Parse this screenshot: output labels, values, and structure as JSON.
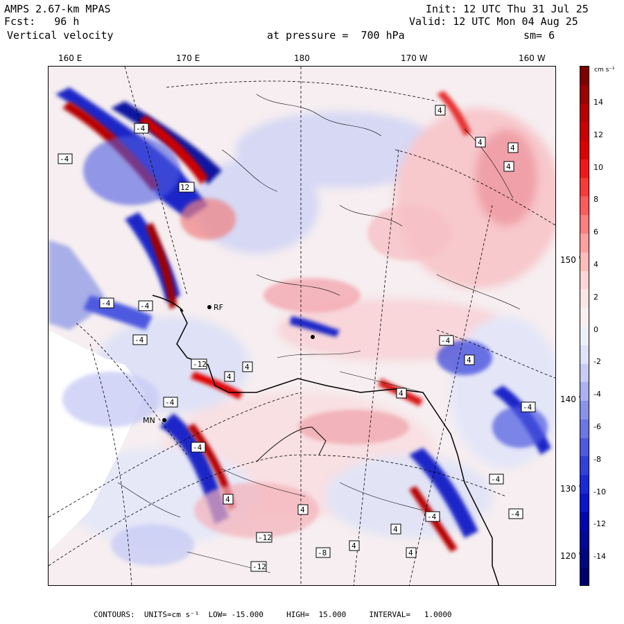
{
  "header": {
    "model": "AMPS 2.67-km MPAS",
    "forecast": "Fcst:   96 h",
    "field": "Vertical velocity",
    "level": "at pressure =  700 hPa",
    "init": "Init: 12 UTC Thu 31 Jul 25",
    "valid": "Valid: 12 UTC Mon 04 Aug 25",
    "smoothing": "sm= 6"
  },
  "map": {
    "longitude_labels": [
      "160 E",
      "170 E",
      "180",
      "170 W",
      "160 W"
    ],
    "latitude_labels": [
      "150 W",
      "140 W",
      "130 W",
      "120 W"
    ],
    "station_labels": [
      "RF",
      "MN"
    ],
    "box_labels": [
      "4",
      "-4",
      "12",
      "-12",
      "-8"
    ],
    "colors": {
      "strong_up": "#8b0000",
      "up": "#f08080",
      "weak_up": "#f7d3d6",
      "neutral": "#f6eef0",
      "weak_down": "#d6d8f4",
      "down": "#6f78e0",
      "strong_down": "#00008b"
    }
  },
  "colorbar": {
    "unit": "cm s⁻¹",
    "tick_labels": [
      "14",
      "12",
      "10",
      "8",
      "6",
      "4",
      "2",
      "0",
      "-2",
      "-4",
      "-6",
      "-8",
      "-10",
      "-12",
      "-14"
    ],
    "colors": [
      "#800000",
      "#9c0000",
      "#b80000",
      "#cc0000",
      "#e00000",
      "#f01818",
      "#f73a3a",
      "#fa5c5c",
      "#fc7e7e",
      "#fda0a0",
      "#fdbcbc",
      "#fdd6d6",
      "#fbe6e6",
      "#f8f0f0",
      "#eef0f8",
      "#dfe2f8",
      "#c8ccf5",
      "#aab0f0",
      "#8a92ea",
      "#6c76e4",
      "#4e5adf",
      "#3240da",
      "#1a2ad6",
      "#0a14c8",
      "#0008b0",
      "#000898",
      "#000880",
      "#000070"
    ]
  },
  "footer": {
    "text": "CONTOURS:  UNITS=cm s⁻¹  LOW= -15.000     HIGH=  15.000     INTERVAL=   1.0000"
  }
}
